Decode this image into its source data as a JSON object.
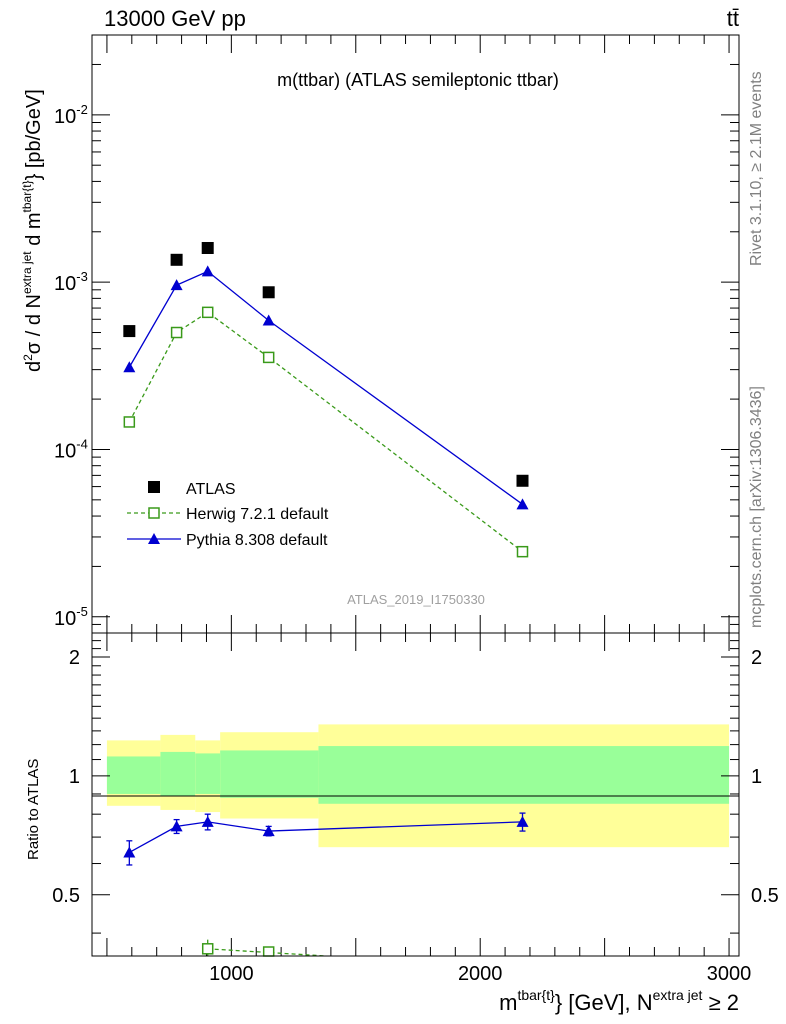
{
  "header": {
    "left": "13000 GeV pp",
    "right": "tt̄"
  },
  "plot_title": "m(ttbar) (ATLAS semileptonic ttbar)",
  "analysis_id": "ATLAS_2019_I1750330",
  "side_text": {
    "rivet": "Rivet 3.1.10, ≥ 2.1M events",
    "mcplots": "mcplots.cern.ch [arXiv:1306.3436]"
  },
  "colors": {
    "atlas": "#000000",
    "herwig": "#3a9a1a",
    "pythia": "#0000d0",
    "band_inner": "#99ff99",
    "band_outer": "#ffff99"
  },
  "chart_data": [
    {
      "type": "scatter",
      "title": "m(ttbar) (ATLAS semileptonic ttbar)",
      "ylabel": "d²σ / d N^{extra jet} d m^{tbar{t}} [pb/GeV]",
      "yscale": "log",
      "ylim": [
        8e-06,
        0.03
      ],
      "xlim": [
        440,
        3040
      ],
      "yticks": [
        {
          "v": 1e-05,
          "label": "10",
          "exp": "-5"
        },
        {
          "v": 0.0001,
          "label": "10",
          "exp": "-4"
        },
        {
          "v": 0.001,
          "label": "10",
          "exp": "-3"
        },
        {
          "v": 0.01,
          "label": "10",
          "exp": "-2"
        }
      ],
      "legend_position": "middle-left",
      "series": [
        {
          "name": "ATLAS",
          "marker": "filled-square",
          "x": [
            590,
            780,
            905,
            1150,
            2170
          ],
          "y": [
            0.00051,
            0.00136,
            0.0016,
            0.00087,
            6.5e-05
          ]
        },
        {
          "name": "Herwig 7.2.1 default",
          "marker": "open-square",
          "line": "dashed",
          "x": [
            590,
            780,
            905,
            1150,
            2170
          ],
          "y": [
            0.000146,
            0.0005,
            0.00066,
            0.000355,
            2.45e-05
          ]
        },
        {
          "name": "Pythia 8.308 default",
          "marker": "filled-triangle",
          "line": "solid",
          "x": [
            590,
            780,
            905,
            1150,
            2170
          ],
          "y": [
            0.00031,
            0.00096,
            0.00116,
            0.00059,
            4.7e-05
          ]
        }
      ]
    },
    {
      "type": "line",
      "ylabel": "Ratio to ATLAS",
      "xlabel": "m^{tbar{t}} [GeV], N^{extra jet} ≥ 2",
      "ylim": [
        0.35,
        2.3
      ],
      "xlim": [
        440,
        3040
      ],
      "yticks": [
        {
          "v": 0.5,
          "label": "0.5"
        },
        {
          "v": 1,
          "label": "1"
        },
        {
          "v": 2,
          "label": "2"
        }
      ],
      "xticks": [
        {
          "v": 1000,
          "label": "1000"
        },
        {
          "v": 2000,
          "label": "2000"
        },
        {
          "v": 3000,
          "label": "3000"
        }
      ],
      "bands": [
        {
          "x0": 500,
          "x1": 715,
          "inner": [
            0.9,
            1.12
          ],
          "outer": [
            0.84,
            1.23
          ]
        },
        {
          "x0": 715,
          "x1": 855,
          "inner": [
            0.89,
            1.15
          ],
          "outer": [
            0.82,
            1.27
          ]
        },
        {
          "x0": 855,
          "x1": 955,
          "inner": [
            0.9,
            1.14
          ],
          "outer": [
            0.81,
            1.23
          ]
        },
        {
          "x0": 955,
          "x1": 1350,
          "inner": [
            0.88,
            1.16
          ],
          "outer": [
            0.78,
            1.29
          ]
        },
        {
          "x0": 1350,
          "x1": 3000,
          "inner": [
            0.85,
            1.19
          ],
          "outer": [
            0.66,
            1.35
          ]
        }
      ],
      "series": [
        {
          "name": "Pythia 8.308 default",
          "x": [
            590,
            780,
            905,
            1150,
            2170
          ],
          "y": [
            0.64,
            0.745,
            0.765,
            0.725,
            0.765
          ],
          "err": [
            0.045,
            0.03,
            0.035,
            0.02,
            0.04
          ]
        },
        {
          "name": "Herwig 7.2.1 default",
          "x": [
            905,
            1150
          ],
          "y": [
            0.365,
            0.355
          ],
          "err": [
            0.02,
            0.01
          ]
        }
      ]
    }
  ]
}
